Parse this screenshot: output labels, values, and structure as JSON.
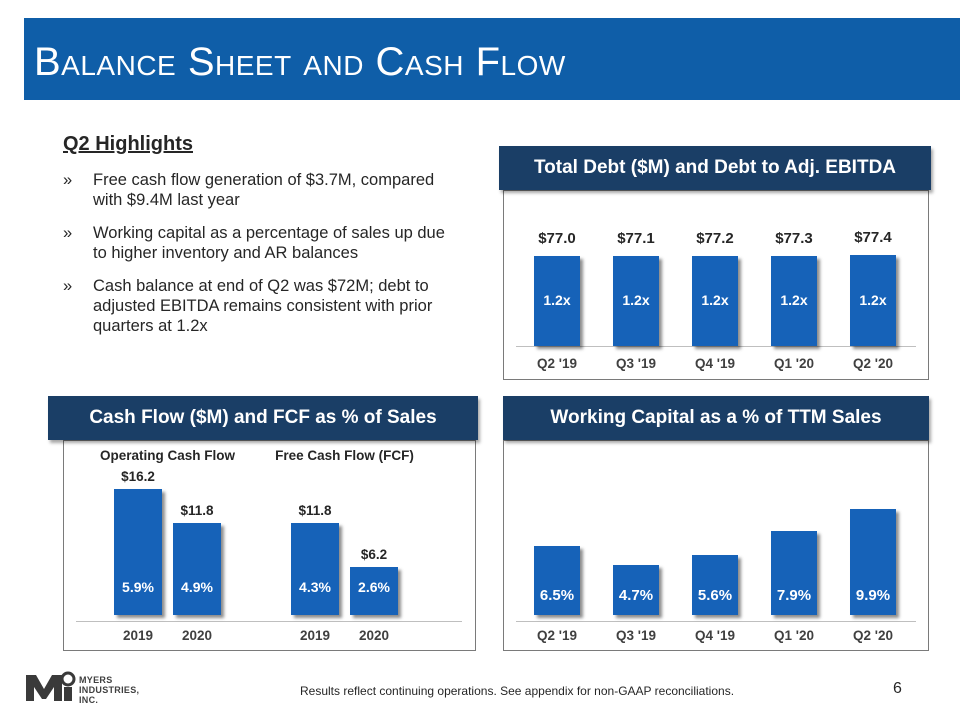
{
  "title": "Balance Sheet and Cash Flow",
  "highlights": {
    "heading": "Q2 Highlights",
    "bullet_mark": "»",
    "bullets": [
      "Free cash flow generation of $3.7M, compared with $9.4M last year",
      "Working capital as a percentage of sales up due to higher inventory and AR balances",
      "Cash balance at end of Q2 was $72M; debt to adjusted EBITDA remains consistent with prior quarters at 1.2x"
    ]
  },
  "colors": {
    "banner": "#0f5ea8",
    "panel_header": "#1a3e66",
    "bar": "#1662b8"
  },
  "chart_data": [
    {
      "type": "bar",
      "title": "Total Debt ($M) and Debt to Adj. EBITDA",
      "categories": [
        "Q2 '19",
        "Q3 '19",
        "Q4 '19",
        "Q1 '20",
        "Q2 '20"
      ],
      "series": [
        {
          "values": [
            77.0,
            77.1,
            77.2,
            77.3,
            77.4
          ],
          "labels": [
            "$77.0",
            "$77.1",
            "$77.2",
            "$77.3",
            "$77.4"
          ]
        },
        {
          "values": [
            1.2,
            1.2,
            1.2,
            1.2,
            1.2
          ],
          "labels": [
            "1.2x",
            "1.2x",
            "1.2x",
            "1.2x",
            "1.2x"
          ]
        }
      ]
    },
    {
      "type": "bar",
      "title": "Cash Flow ($M) and FCF as % of Sales",
      "groups": [
        {
          "name": "Operating Cash Flow",
          "categories": [
            "2019",
            "2020"
          ],
          "values": [
            16.2,
            11.8
          ],
          "labels": [
            "$16.2",
            "$11.8"
          ],
          "pct_labels": [
            "5.9%",
            "4.9%"
          ]
        },
        {
          "name": "Free Cash Flow (FCF)",
          "categories": [
            "2019",
            "2020"
          ],
          "values": [
            11.8,
            6.2
          ],
          "labels": [
            "$11.8",
            "$6.2"
          ],
          "pct_labels": [
            "4.3%",
            "2.6%"
          ]
        }
      ]
    },
    {
      "type": "bar",
      "title": "Working Capital as a % of TTM Sales",
      "categories": [
        "Q2 '19",
        "Q3 '19",
        "Q4 '19",
        "Q1 '20",
        "Q2 '20"
      ],
      "values": [
        6.5,
        4.7,
        5.6,
        7.9,
        9.9
      ],
      "labels": [
        "6.5%",
        "4.7%",
        "5.6%",
        "7.9%",
        "9.9%"
      ]
    }
  ],
  "footer": {
    "note": "Results reflect continuing operations.  See appendix for non-GAAP reconciliations.",
    "page_number": "6",
    "logo_lines": [
      "MYERS",
      "INDUSTRIES,",
      "INC."
    ]
  }
}
